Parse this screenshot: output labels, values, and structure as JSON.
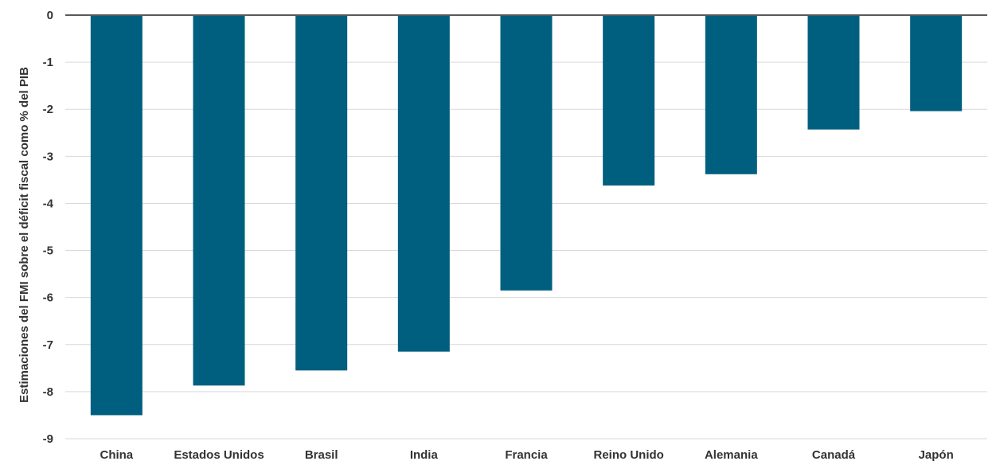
{
  "chart_data": {
    "type": "bar",
    "title": "",
    "xlabel": "",
    "ylabel": "Estimaciones del FMI sobre el déficit fiscal como % del PIB",
    "categories": [
      "China",
      "Estados Unidos",
      "Brasil",
      "India",
      "Francia",
      "Reino Unido",
      "Alemania",
      "Canadá",
      "Japón"
    ],
    "values": [
      -8.5,
      -7.87,
      -7.55,
      -7.15,
      -5.85,
      -3.62,
      -3.38,
      -2.43,
      -2.04
    ],
    "ylim": [
      -9,
      0
    ],
    "yticks": [
      0,
      -1,
      -2,
      -3,
      -4,
      -5,
      -6,
      -7,
      -8,
      -9
    ],
    "grid": true,
    "legend": "none",
    "colors": {
      "bar": "#005f7f",
      "grid": "#d9d9d9",
      "zero_line": "#595959"
    }
  }
}
